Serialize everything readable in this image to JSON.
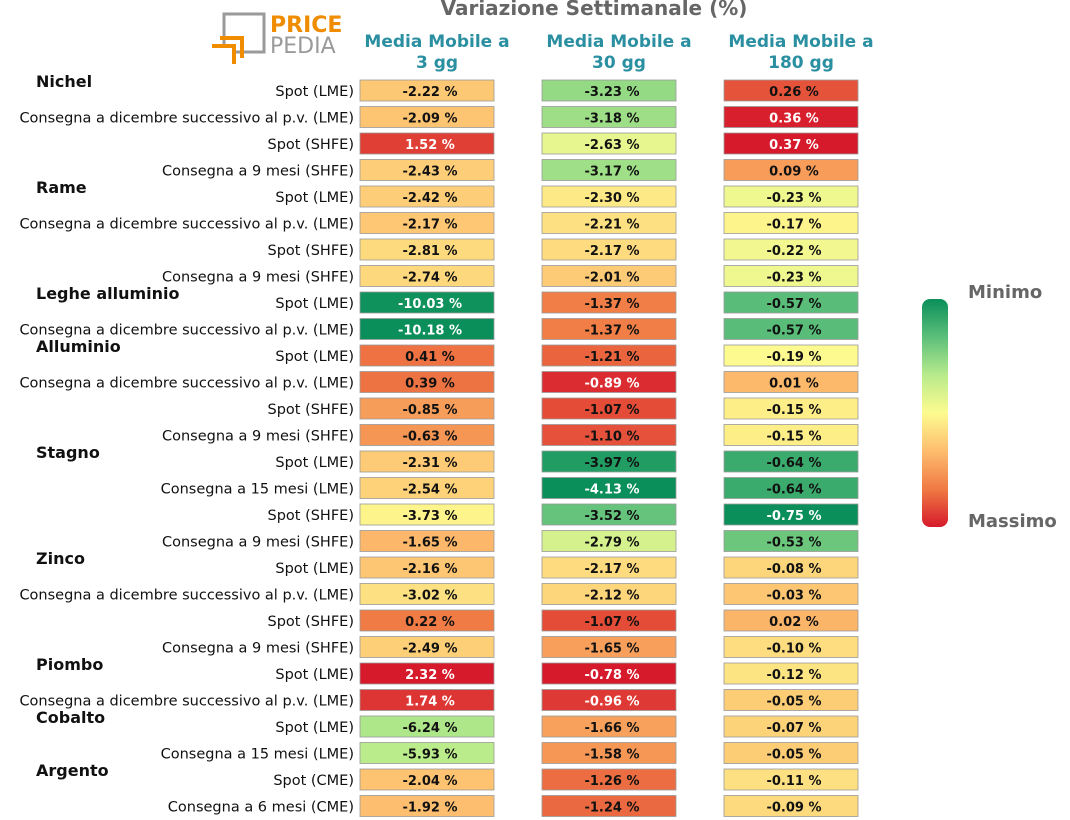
{
  "chart_data": {
    "type": "heatmap",
    "title": "Variazione Settimanale (%)",
    "logo": {
      "part1": "PRICE",
      "part2": "PEDIA"
    },
    "columns": [
      {
        "line1": "Media Mobile a",
        "line2": "3 gg"
      },
      {
        "line1": "Media Mobile a",
        "line2": "30 gg"
      },
      {
        "line1": "Media Mobile a",
        "line2": "180 gg"
      }
    ],
    "legend": {
      "top": "Minimo",
      "bottom": "Massimo",
      "colors": [
        "#0a8f5a",
        "#5cbf7a",
        "#b8eb8c",
        "#fdfb8f",
        "#fdbd6e",
        "#f07a44",
        "#d61a2c"
      ]
    },
    "groups": [
      {
        "name": "Nichel",
        "rows": [
          {
            "label": "Spot (LME)",
            "values": [
              -2.22,
              -3.23,
              0.26
            ]
          },
          {
            "label": "Consegna a dicembre successivo al p.v. (LME)",
            "values": [
              -2.09,
              -3.18,
              0.36
            ]
          },
          {
            "label": "Spot (SHFE)",
            "values": [
              1.52,
              -2.63,
              0.37
            ]
          },
          {
            "label": "Consegna a 9 mesi (SHFE)",
            "values": [
              -2.43,
              -3.17,
              0.09
            ]
          }
        ]
      },
      {
        "name": "Rame",
        "rows": [
          {
            "label": "Spot (LME)",
            "values": [
              -2.42,
              -2.3,
              -0.23
            ]
          },
          {
            "label": "Consegna a dicembre successivo al p.v. (LME)",
            "values": [
              -2.17,
              -2.21,
              -0.17
            ]
          },
          {
            "label": "Spot (SHFE)",
            "values": [
              -2.81,
              -2.17,
              -0.22
            ]
          },
          {
            "label": "Consegna a 9 mesi (SHFE)",
            "values": [
              -2.74,
              -2.01,
              -0.23
            ]
          }
        ]
      },
      {
        "name": "Leghe alluminio",
        "rows": [
          {
            "label": "Spot (LME)",
            "values": [
              -10.03,
              -1.37,
              -0.57
            ]
          },
          {
            "label": "Consegna a dicembre successivo al p.v. (LME)",
            "values": [
              -10.18,
              -1.37,
              -0.57
            ]
          }
        ]
      },
      {
        "name": "Alluminio",
        "rows": [
          {
            "label": "Spot (LME)",
            "values": [
              0.41,
              -1.21,
              -0.19
            ]
          },
          {
            "label": "Consegna a dicembre successivo al p.v. (LME)",
            "values": [
              0.39,
              -0.89,
              0.01
            ]
          },
          {
            "label": "Spot (SHFE)",
            "values": [
              -0.85,
              -1.07,
              -0.15
            ]
          },
          {
            "label": "Consegna a 9 mesi (SHFE)",
            "values": [
              -0.63,
              -1.1,
              -0.15
            ]
          }
        ]
      },
      {
        "name": "Stagno",
        "rows": [
          {
            "label": "Spot (LME)",
            "values": [
              -2.31,
              -3.97,
              -0.64
            ]
          },
          {
            "label": "Consegna a 15 mesi (LME)",
            "values": [
              -2.54,
              -4.13,
              -0.64
            ]
          },
          {
            "label": "Spot (SHFE)",
            "values": [
              -3.73,
              -3.52,
              -0.75
            ]
          },
          {
            "label": "Consegna a 9 mesi (SHFE)",
            "values": [
              -1.65,
              -2.79,
              -0.53
            ]
          }
        ]
      },
      {
        "name": "Zinco",
        "rows": [
          {
            "label": "Spot (LME)",
            "values": [
              -2.16,
              -2.17,
              -0.08
            ]
          },
          {
            "label": "Consegna a dicembre successivo al p.v. (LME)",
            "values": [
              -3.02,
              -2.12,
              -0.03
            ]
          },
          {
            "label": "Spot (SHFE)",
            "values": [
              0.22,
              -1.07,
              0.02
            ]
          },
          {
            "label": "Consegna a 9 mesi (SHFE)",
            "values": [
              -2.49,
              -1.65,
              -0.1
            ]
          }
        ]
      },
      {
        "name": "Piombo",
        "rows": [
          {
            "label": "Spot (LME)",
            "values": [
              2.32,
              -0.78,
              -0.12
            ]
          },
          {
            "label": "Consegna a dicembre successivo al p.v. (LME)",
            "values": [
              1.74,
              -0.96,
              -0.05
            ]
          }
        ]
      },
      {
        "name": "Cobalto",
        "rows": [
          {
            "label": "Spot (LME)",
            "values": [
              -6.24,
              -1.66,
              -0.07
            ]
          },
          {
            "label": "Consegna a 15 mesi (LME)",
            "values": [
              -5.93,
              -1.58,
              -0.05
            ]
          }
        ]
      },
      {
        "name": "Argento",
        "rows": [
          {
            "label": "Spot (CME)",
            "values": [
              -2.04,
              -1.26,
              -0.11
            ]
          },
          {
            "label": "Consegna a 6 mesi (CME)",
            "values": [
              -1.92,
              -1.24,
              -0.09
            ]
          }
        ]
      }
    ]
  }
}
